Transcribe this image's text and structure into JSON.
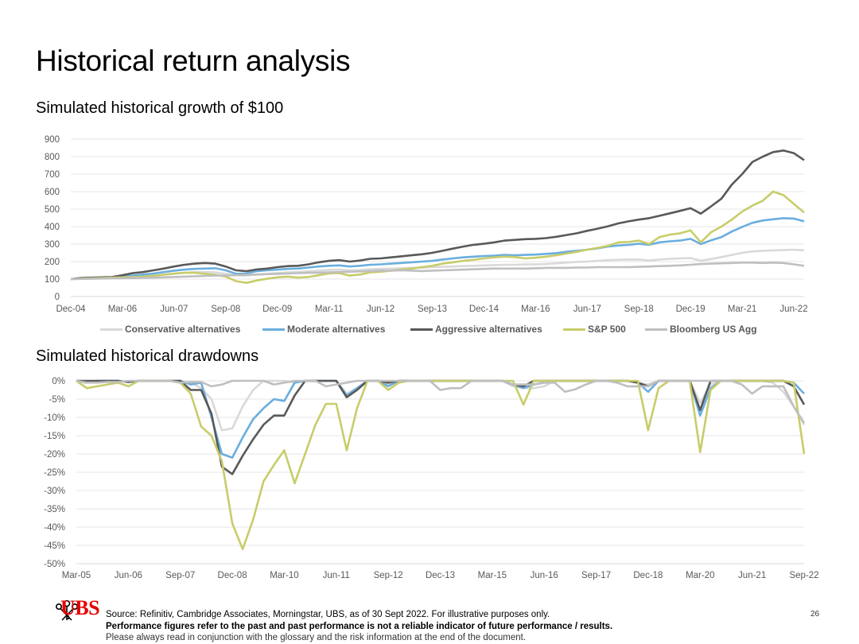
{
  "page": {
    "title": "Historical return analysis",
    "subtitle_growth": "Simulated historical growth of $100",
    "subtitle_drawdowns": "Simulated historical drawdowns",
    "source": "Source: Refinitiv, Cambridge Associates, Morningstar, UBS, as of 30 Sept 2022. For illustrative purposes only.",
    "disclaimer_bold": "Performance figures refer to the past and past performance is not a reliable indicator of future performance / results.",
    "disclaimer": "Please always read in conjunction with the glossary and the risk information at the end of the document.",
    "page_number": "26",
    "logo_text": "UBS",
    "logo_icon": "keys-icon"
  },
  "colors": {
    "conservative": "#d9d9d9",
    "moderate": "#6aaede",
    "aggressive": "#595959",
    "sp500": "#c8cc6a",
    "agg": "#bfbfbf",
    "brand": "#e60000"
  },
  "chart_data": [
    {
      "type": "line",
      "title": "Simulated historical growth of $100",
      "x": [
        "Dec-04",
        "Mar-05",
        "Jun-05",
        "Sep-05",
        "Dec-05",
        "Mar-06",
        "Jun-06",
        "Sep-06",
        "Dec-06",
        "Mar-07",
        "Jun-07",
        "Sep-07",
        "Dec-07",
        "Mar-08",
        "Jun-08",
        "Sep-08",
        "Dec-08",
        "Mar-09",
        "Jun-09",
        "Sep-09",
        "Dec-09",
        "Mar-10",
        "Jun-10",
        "Sep-10",
        "Dec-10",
        "Mar-11",
        "Jun-11",
        "Sep-11",
        "Dec-11",
        "Mar-12",
        "Jun-12",
        "Sep-12",
        "Dec-12",
        "Mar-13",
        "Jun-13",
        "Sep-13",
        "Dec-13",
        "Mar-14",
        "Jun-14",
        "Sep-14",
        "Dec-14",
        "Mar-15",
        "Jun-15",
        "Sep-15",
        "Dec-15",
        "Mar-16",
        "Jun-16",
        "Sep-16",
        "Dec-16",
        "Mar-17",
        "Jun-17",
        "Sep-17",
        "Dec-17",
        "Mar-18",
        "Jun-18",
        "Sep-18",
        "Dec-18",
        "Mar-19",
        "Jun-19",
        "Sep-19",
        "Dec-19",
        "Mar-20",
        "Jun-20",
        "Sep-20",
        "Dec-20",
        "Mar-21",
        "Jun-21",
        "Sep-21",
        "Dec-21",
        "Mar-22",
        "Jun-22",
        "Sep-22"
      ],
      "tick_labels": [
        "Dec-04",
        "Mar-06",
        "Jun-07",
        "Sep-08",
        "Dec-09",
        "Mar-11",
        "Jun-12",
        "Sep-13",
        "Dec-14",
        "Mar-16",
        "Jun-17",
        "Sep-18",
        "Dec-19",
        "Mar-21",
        "Jun-22"
      ],
      "ylim": [
        0,
        900
      ],
      "yticks": [
        0,
        100,
        200,
        300,
        400,
        500,
        600,
        700,
        800,
        900
      ],
      "grid": true,
      "legend_position": "bottom",
      "series": [
        {
          "name": "Conservative alternatives",
          "key": "conservative",
          "values": [
            100,
            104,
            106,
            108,
            110,
            112,
            115,
            118,
            122,
            126,
            130,
            136,
            140,
            140,
            138,
            130,
            122,
            120,
            126,
            130,
            134,
            138,
            140,
            144,
            148,
            152,
            154,
            150,
            152,
            156,
            158,
            160,
            162,
            164,
            165,
            168,
            170,
            172,
            174,
            176,
            178,
            180,
            182,
            182,
            184,
            184,
            186,
            190,
            194,
            198,
            200,
            204,
            208,
            210,
            212,
            212,
            206,
            212,
            216,
            218,
            220,
            205,
            215,
            226,
            238,
            250,
            258,
            262,
            264,
            266,
            268,
            264
          ]
        },
        {
          "name": "Moderate alternatives",
          "key": "moderate",
          "values": [
            100,
            104,
            106,
            108,
            110,
            115,
            120,
            126,
            132,
            140,
            148,
            154,
            158,
            160,
            162,
            150,
            130,
            132,
            145,
            150,
            154,
            158,
            160,
            166,
            172,
            176,
            178,
            172,
            176,
            182,
            184,
            188,
            192,
            196,
            200,
            204,
            212,
            218,
            224,
            228,
            232,
            234,
            238,
            236,
            238,
            240,
            244,
            248,
            256,
            262,
            268,
            276,
            286,
            292,
            296,
            302,
            296,
            310,
            316,
            320,
            330,
            300,
            322,
            340,
            372,
            398,
            422,
            435,
            442,
            448,
            446,
            430
          ]
        },
        {
          "name": "Aggressive alternatives",
          "key": "aggressive",
          "values": [
            100,
            106,
            108,
            110,
            112,
            122,
            134,
            140,
            150,
            160,
            172,
            182,
            188,
            192,
            188,
            172,
            150,
            145,
            155,
            160,
            168,
            174,
            176,
            184,
            196,
            204,
            208,
            200,
            206,
            216,
            218,
            224,
            230,
            236,
            242,
            250,
            262,
            274,
            286,
            296,
            302,
            310,
            320,
            324,
            328,
            330,
            334,
            342,
            352,
            362,
            376,
            388,
            402,
            418,
            430,
            440,
            448,
            462,
            476,
            490,
            505,
            474,
            516,
            560,
            640,
            700,
            770,
            800,
            826,
            835,
            820,
            780
          ]
        },
        {
          "name": "S&P 500",
          "key": "sp500",
          "values": [
            100,
            102,
            104,
            106,
            108,
            110,
            112,
            114,
            118,
            125,
            132,
            136,
            136,
            130,
            124,
            114,
            88,
            78,
            92,
            102,
            110,
            114,
            108,
            112,
            122,
            132,
            134,
            120,
            126,
            138,
            142,
            148,
            154,
            160,
            168,
            176,
            188,
            196,
            204,
            210,
            218,
            224,
            228,
            226,
            218,
            222,
            228,
            236,
            246,
            256,
            268,
            278,
            290,
            310,
            312,
            320,
            300,
            340,
            354,
            362,
            378,
            310,
            368,
            400,
            440,
            486,
            520,
            548,
            600,
            580,
            530,
            480
          ]
        },
        {
          "name": "Bloomberg US Agg",
          "key": "agg",
          "values": [
            100,
            101,
            102,
            103,
            104,
            105,
            106,
            107,
            108,
            110,
            112,
            114,
            116,
            118,
            120,
            120,
            122,
            124,
            126,
            128,
            130,
            132,
            134,
            136,
            136,
            138,
            140,
            142,
            144,
            146,
            148,
            148,
            150,
            148,
            146,
            148,
            150,
            152,
            154,
            156,
            158,
            160,
            160,
            160,
            160,
            162,
            164,
            164,
            164,
            166,
            166,
            168,
            168,
            168,
            168,
            170,
            172,
            174,
            176,
            178,
            182,
            186,
            188,
            190,
            192,
            194,
            194,
            192,
            194,
            192,
            184,
            176
          ]
        }
      ]
    },
    {
      "type": "line",
      "title": "Simulated historical drawdowns",
      "x": [
        "Mar-05",
        "Jun-05",
        "Sep-05",
        "Dec-05",
        "Mar-06",
        "Jun-06",
        "Sep-06",
        "Dec-06",
        "Mar-07",
        "Jun-07",
        "Sep-07",
        "Dec-07",
        "Mar-08",
        "Jun-08",
        "Sep-08",
        "Dec-08",
        "Mar-09",
        "Jun-09",
        "Sep-09",
        "Dec-09",
        "Mar-10",
        "Jun-10",
        "Sep-10",
        "Dec-10",
        "Mar-11",
        "Jun-11",
        "Sep-11",
        "Dec-11",
        "Mar-12",
        "Jun-12",
        "Sep-12",
        "Dec-12",
        "Mar-13",
        "Jun-13",
        "Sep-13",
        "Dec-13",
        "Mar-14",
        "Jun-14",
        "Sep-14",
        "Dec-14",
        "Mar-15",
        "Jun-15",
        "Sep-15",
        "Dec-15",
        "Mar-16",
        "Jun-16",
        "Sep-16",
        "Dec-16",
        "Mar-17",
        "Jun-17",
        "Sep-17",
        "Dec-17",
        "Mar-18",
        "Jun-18",
        "Sep-18",
        "Dec-18",
        "Mar-19",
        "Jun-19",
        "Sep-19",
        "Dec-19",
        "Mar-20",
        "Jun-20",
        "Sep-20",
        "Dec-20",
        "Mar-21",
        "Jun-21",
        "Sep-21",
        "Dec-21",
        "Mar-22",
        "Jun-22",
        "Sep-22"
      ],
      "tick_labels": [
        "Mar-05",
        "Jun-06",
        "Sep-07",
        "Dec-08",
        "Mar-10",
        "Jun-11",
        "Sep-12",
        "Dec-13",
        "Mar-15",
        "Jun-16",
        "Sep-17",
        "Dec-18",
        "Mar-20",
        "Jun-21",
        "Sep-22"
      ],
      "ylim": [
        -50,
        0
      ],
      "yticks": [
        0,
        -5,
        -10,
        -15,
        -20,
        -25,
        -30,
        -35,
        -40,
        -45,
        -50
      ],
      "grid": true,
      "series": [
        {
          "key": "conservative",
          "values": [
            0,
            -0.5,
            0,
            0,
            0,
            -0.3,
            0,
            0,
            0,
            0,
            0,
            -0.5,
            -2,
            -5,
            -13.5,
            -13,
            -7,
            -2.5,
            0,
            0,
            0,
            -0.5,
            0,
            0,
            0,
            0,
            -3.5,
            -2,
            0,
            0,
            -1,
            0,
            0,
            0,
            0,
            0,
            0,
            0,
            0,
            0,
            0,
            0,
            -1.5,
            -2,
            -2,
            -1.5,
            0,
            0,
            0,
            0,
            0,
            0,
            0,
            0,
            -0.5,
            -1,
            0,
            0,
            0,
            0,
            -6,
            -1,
            0,
            0,
            0,
            0,
            0,
            -0.5,
            -3,
            -7,
            -12
          ]
        },
        {
          "key": "moderate",
          "values": [
            0,
            -0.5,
            0,
            0,
            0,
            -0.3,
            0,
            0,
            0,
            0,
            0,
            -1,
            -0.5,
            -10,
            -20,
            -21,
            -15.5,
            -10.5,
            -7.5,
            -5,
            -5.5,
            -0.5,
            0,
            0,
            0,
            0,
            -4,
            -2,
            0,
            0,
            -1.5,
            0,
            0,
            0,
            0,
            0,
            0,
            0,
            0,
            0,
            0,
            0,
            -1,
            -2,
            -1,
            -0.5,
            0,
            0,
            0,
            0,
            0,
            0,
            0,
            0,
            -0.5,
            -3,
            0,
            0,
            0,
            0,
            -9.5,
            -2,
            0,
            0,
            0,
            0,
            0,
            0,
            0,
            -0.5,
            -3.5
          ]
        },
        {
          "key": "aggressive",
          "values": [
            0,
            0,
            0,
            0,
            0,
            -0.3,
            0,
            0,
            0,
            0,
            0,
            -2.5,
            -2.5,
            -9,
            -23.5,
            -25.5,
            -20.5,
            -16,
            -12,
            -9.5,
            -9.5,
            -4,
            0,
            0,
            0,
            0,
            -4.5,
            -2.5,
            0,
            0,
            -0.5,
            0,
            0,
            0,
            0,
            0,
            0,
            0,
            0,
            0,
            0,
            0,
            -1,
            -1.5,
            0,
            0,
            0,
            0,
            0,
            0,
            0,
            0,
            0,
            0,
            -0.5,
            -1.5,
            0,
            0,
            0,
            0,
            -8,
            0,
            0,
            0,
            0,
            0,
            0,
            0,
            0,
            -1.5,
            -6.5
          ]
        },
        {
          "key": "sp500",
          "values": [
            0,
            -2,
            -1.5,
            -1,
            -0.5,
            -1.5,
            0,
            0,
            0,
            0,
            -0.5,
            -3.5,
            -12.5,
            -15,
            -22,
            -39,
            -46,
            -38,
            -27.5,
            -23,
            -19,
            -28,
            -20,
            -12,
            -6.3,
            -6.3,
            -19,
            -7.5,
            0,
            0,
            -2.5,
            -0.5,
            0,
            0,
            0,
            0,
            0,
            0,
            0,
            0,
            0,
            0,
            0,
            -6.5,
            0,
            0,
            0,
            0,
            0,
            0,
            0,
            0,
            0,
            0,
            0,
            -13.5,
            -2,
            0,
            0,
            0,
            -19.5,
            -2.5,
            0,
            0,
            0,
            0,
            0,
            0,
            0,
            -0.5,
            -20
          ]
        },
        {
          "key": "agg",
          "values": [
            0,
            -0.5,
            -0.5,
            -0.3,
            -0.3,
            0,
            0,
            0,
            0,
            0,
            -0.5,
            -0.3,
            -0.3,
            -1.5,
            -1,
            0,
            0,
            0,
            0,
            -1,
            -0.5,
            0,
            0,
            0,
            -1.5,
            -1,
            -0.5,
            0,
            0,
            0,
            0,
            0,
            0,
            0,
            0,
            -2.5,
            -2,
            -2,
            0,
            0,
            0,
            0,
            -1,
            -1,
            -1,
            -0.5,
            -0.5,
            -3,
            -2.3,
            -1,
            0,
            0,
            -0.5,
            -1.5,
            -1.5,
            -1.5,
            0,
            0,
            0,
            0,
            0,
            0,
            0,
            0,
            -1,
            -3.5,
            -1.5,
            -1.5,
            -1.5,
            -7,
            -11.5
          ]
        }
      ]
    }
  ]
}
